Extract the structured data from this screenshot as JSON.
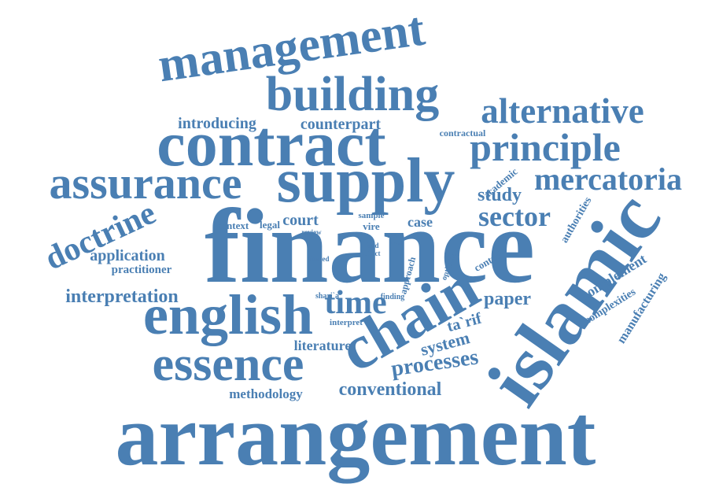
{
  "color": "#4a7fb3",
  "words": [
    {
      "key": "arrangement",
      "text": "arrangement"
    },
    {
      "key": "finance",
      "text": "finance"
    },
    {
      "key": "islamic",
      "text": "islamic"
    },
    {
      "key": "supply",
      "text": "supply"
    },
    {
      "key": "contract",
      "text": "contract"
    },
    {
      "key": "chain",
      "text": "chain"
    },
    {
      "key": "english",
      "text": "english"
    },
    {
      "key": "essence",
      "text": "essence"
    },
    {
      "key": "management",
      "text": "management"
    },
    {
      "key": "building",
      "text": "building"
    },
    {
      "key": "assurance",
      "text": "assurance"
    },
    {
      "key": "principle",
      "text": "principle"
    },
    {
      "key": "alternative",
      "text": "alternative"
    },
    {
      "key": "mercatoria",
      "text": "mercatoria"
    },
    {
      "key": "doctrine",
      "text": "doctrine"
    },
    {
      "key": "time",
      "text": "time"
    },
    {
      "key": "sector",
      "text": "sector"
    },
    {
      "key": "processes",
      "text": "processes"
    },
    {
      "key": "conventional",
      "text": "conventional"
    },
    {
      "key": "interpretation",
      "text": "interpretation"
    },
    {
      "key": "paper",
      "text": "paper"
    },
    {
      "key": "system",
      "text": "system"
    },
    {
      "key": "application",
      "text": "application"
    },
    {
      "key": "introducing",
      "text": "introducing"
    },
    {
      "key": "counterpart",
      "text": "counterpart"
    },
    {
      "key": "court",
      "text": "court"
    },
    {
      "key": "study",
      "text": "study"
    },
    {
      "key": "literature",
      "text": "literature"
    },
    {
      "key": "methodology",
      "text": "methodology"
    },
    {
      "key": "manufacturing",
      "text": "manufacturing"
    },
    {
      "key": "complement",
      "text": "complement"
    },
    {
      "key": "tarif",
      "text": "ta`rif"
    },
    {
      "key": "case",
      "text": "case"
    },
    {
      "key": "practitioner",
      "text": "practitioner"
    },
    {
      "key": "context",
      "text": "context"
    },
    {
      "key": "legal",
      "text": "legal"
    },
    {
      "key": "complexities",
      "text": "complexities"
    },
    {
      "key": "authorities",
      "text": "authorities"
    },
    {
      "key": "academic",
      "text": "academic"
    },
    {
      "key": "approach",
      "text": "approach"
    },
    {
      "key": "control",
      "text": "control"
    },
    {
      "key": "contractual",
      "text": "contractual"
    },
    {
      "key": "vire",
      "text": "vire"
    },
    {
      "key": "sample",
      "text": "sample"
    },
    {
      "key": "review",
      "text": "review"
    },
    {
      "key": "limited",
      "text": "limited"
    },
    {
      "key": "food",
      "text": "food"
    },
    {
      "key": "effect",
      "text": "effect"
    },
    {
      "key": "lack",
      "text": "lack"
    },
    {
      "key": "tend",
      "text": "tend"
    },
    {
      "key": "optimise",
      "text": "optimise"
    },
    {
      "key": "sharia",
      "text": "shari`a"
    },
    {
      "key": "finding",
      "text": "finding"
    },
    {
      "key": "interpret",
      "text": "interpret"
    }
  ]
}
